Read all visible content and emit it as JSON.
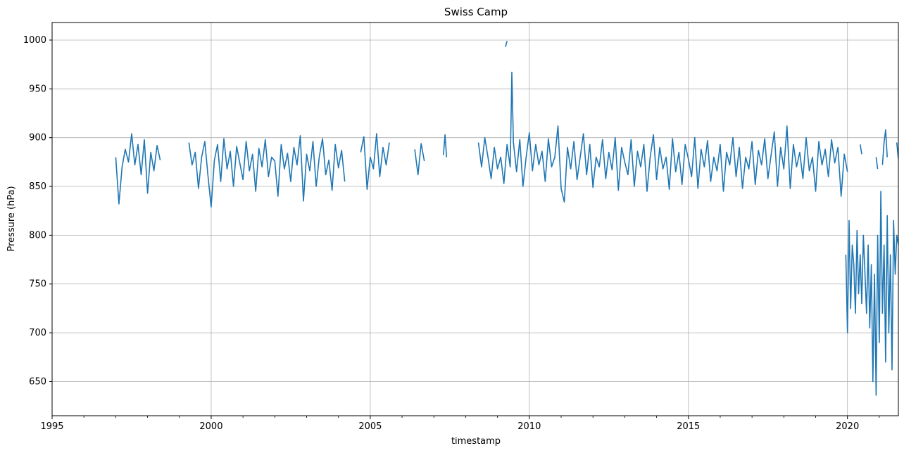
{
  "chart_data": {
    "type": "line",
    "title": "Swiss Camp",
    "xlabel": "timestamp",
    "ylabel": "Pressure (hPa)",
    "xlim": [
      1995.0,
      2021.6
    ],
    "ylim": [
      615,
      1018
    ],
    "x_ticks": [
      1995,
      2000,
      2005,
      2010,
      2015,
      2020
    ],
    "y_ticks": [
      650,
      700,
      750,
      800,
      850,
      900,
      950,
      1000
    ],
    "grid": true,
    "color": "#1f77b4",
    "segments": [
      {
        "x": [
          1997.0,
          1997.1,
          1997.2,
          1997.3,
          1997.4,
          1997.5,
          1997.6,
          1997.7,
          1997.8,
          1997.9,
          1998.0,
          1998.1,
          1998.2,
          1998.3,
          1998.4
        ],
        "y": [
          880,
          832,
          870,
          888,
          875,
          904,
          872,
          893,
          862,
          898,
          843,
          885,
          866,
          892,
          877
        ]
      },
      {
        "x": [
          1999.3,
          1999.4,
          1999.5,
          1999.6,
          1999.7,
          1999.8,
          1999.9,
          2000.0,
          2000.1,
          2000.2,
          2000.3,
          2000.4,
          2000.5,
          2000.6,
          2000.7,
          2000.8,
          2000.9,
          2001.0,
          2001.1,
          2001.2,
          2001.3,
          2001.4,
          2001.5,
          2001.6,
          2001.7,
          2001.8,
          2001.9,
          2002.0,
          2002.1,
          2002.2,
          2002.3,
          2002.4,
          2002.5,
          2002.6,
          2002.7,
          2002.8,
          2002.9,
          2003.0,
          2003.1,
          2003.2,
          2003.3,
          2003.4,
          2003.5,
          2003.6,
          2003.7,
          2003.8,
          2003.9,
          2004.0,
          2004.1,
          2004.2
        ],
        "y": [
          895,
          872,
          885,
          848,
          880,
          896,
          861,
          829,
          877,
          893,
          855,
          899,
          868,
          886,
          850,
          891,
          874,
          857,
          896,
          866,
          883,
          845,
          889,
          870,
          898,
          860,
          880,
          876,
          840,
          893,
          868,
          884,
          855,
          890,
          872,
          902,
          835,
          883,
          866,
          896,
          850,
          881,
          899,
          862,
          877,
          846,
          893,
          869,
          887,
          855
        ]
      },
      {
        "x": [
          2004.7,
          2004.8,
          2004.9,
          2005.0,
          2005.1,
          2005.2,
          2005.3,
          2005.4,
          2005.5,
          2005.6
        ],
        "y": [
          885,
          901,
          847,
          880,
          868,
          904,
          860,
          890,
          872,
          895
        ]
      },
      {
        "x": [
          2006.4,
          2006.5,
          2006.6,
          2006.7
        ],
        "y": [
          888,
          862,
          894,
          876
        ]
      },
      {
        "x": [
          2007.3,
          2007.35,
          2007.4
        ],
        "y": [
          882,
          903,
          880
        ]
      },
      {
        "x": [
          2009.25,
          2009.3
        ],
        "y": [
          993,
          999
        ]
      },
      {
        "x": [
          2008.4,
          2008.5,
          2008.6,
          2008.7,
          2008.8,
          2008.9,
          2009.0,
          2009.1,
          2009.2,
          2009.3,
          2009.4,
          2009.45,
          2009.5,
          2009.55,
          2009.6,
          2009.7,
          2009.8,
          2009.9,
          2010.0,
          2010.1,
          2010.2,
          2010.3,
          2010.4,
          2010.5,
          2010.6,
          2010.7,
          2010.8,
          2010.9,
          2011.0,
          2011.1,
          2011.2,
          2011.3,
          2011.4,
          2011.5,
          2011.6,
          2011.7,
          2011.8,
          2011.9,
          2012.0,
          2012.1,
          2012.2,
          2012.3,
          2012.4,
          2012.5,
          2012.6,
          2012.7,
          2012.8,
          2012.9,
          2013.0,
          2013.1,
          2013.2,
          2013.3,
          2013.4,
          2013.5,
          2013.6,
          2013.7,
          2013.8,
          2013.9,
          2014.0,
          2014.1,
          2014.2,
          2014.3,
          2014.4,
          2014.5,
          2014.6,
          2014.7,
          2014.8,
          2014.9,
          2015.0,
          2015.1,
          2015.2,
          2015.3,
          2015.4,
          2015.5,
          2015.6,
          2015.7,
          2015.8,
          2015.9,
          2016.0,
          2016.1,
          2016.2,
          2016.3,
          2016.4,
          2016.5,
          2016.6,
          2016.7,
          2016.8,
          2016.9,
          2017.0,
          2017.1,
          2017.2,
          2017.3,
          2017.4,
          2017.5,
          2017.6,
          2017.7,
          2017.8,
          2017.9,
          2018.0,
          2018.1,
          2018.2,
          2018.3,
          2018.4,
          2018.5,
          2018.6,
          2018.7,
          2018.8,
          2018.9,
          2019.0,
          2019.1,
          2019.2,
          2019.3,
          2019.4,
          2019.5,
          2019.6,
          2019.7,
          2019.8,
          2019.9,
          2020.0
        ],
        "y": [
          895,
          870,
          900,
          880,
          858,
          890,
          868,
          880,
          853,
          893,
          870,
          967,
          895,
          880,
          865,
          898,
          850,
          880,
          905,
          866,
          893,
          872,
          886,
          855,
          899,
          870,
          880,
          912,
          848,
          834,
          890,
          868,
          896,
          857,
          880,
          904,
          862,
          893,
          849,
          880,
          870,
          898,
          858,
          885,
          867,
          900,
          846,
          890,
          875,
          862,
          898,
          850,
          886,
          870,
          893,
          845,
          880,
          903,
          857,
          890,
          868,
          880,
          847,
          899,
          865,
          885,
          852,
          893,
          878,
          860,
          900,
          848,
          888,
          870,
          897,
          855,
          880,
          866,
          893,
          845,
          885,
          872,
          900,
          860,
          890,
          848,
          880,
          868,
          896,
          852,
          887,
          872,
          899,
          858,
          882,
          906,
          850,
          890,
          868,
          912,
          848,
          893,
          870,
          885,
          858,
          900,
          866,
          880,
          845,
          896,
          872,
          888,
          860,
          898,
          874,
          890,
          840,
          883,
          865
        ]
      },
      {
        "x": [
          2020.4,
          2020.45
        ],
        "y": [
          893,
          883
        ]
      },
      {
        "x": [
          2020.9,
          2020.95
        ],
        "y": [
          880,
          868
        ]
      },
      {
        "x": [
          2021.1,
          2021.15,
          2021.2,
          2021.25
        ],
        "y": [
          872,
          895,
          908,
          880
        ]
      },
      {
        "x": [
          2021.55,
          2021.6
        ],
        "y": [
          895,
          878
        ]
      },
      {
        "x": [
          2019.95,
          2020.0,
          2020.05,
          2020.1,
          2020.15,
          2020.2,
          2020.25,
          2020.3,
          2020.35,
          2020.4,
          2020.45,
          2020.5,
          2020.55,
          2020.6,
          2020.65,
          2020.7,
          2020.75,
          2020.8,
          2020.85,
          2020.9,
          2020.95,
          2021.0,
          2021.05,
          2021.1,
          2021.15,
          2021.2,
          2021.25,
          2021.3,
          2021.35,
          2021.4,
          2021.45,
          2021.5,
          2021.55,
          2021.6
        ],
        "y": [
          780,
          700,
          815,
          725,
          790,
          770,
          720,
          805,
          740,
          780,
          730,
          800,
          760,
          720,
          790,
          705,
          770,
          650,
          760,
          636,
          800,
          690,
          845,
          720,
          790,
          670,
          820,
          700,
          780,
          662,
          815,
          760,
          800,
          790
        ]
      }
    ]
  }
}
